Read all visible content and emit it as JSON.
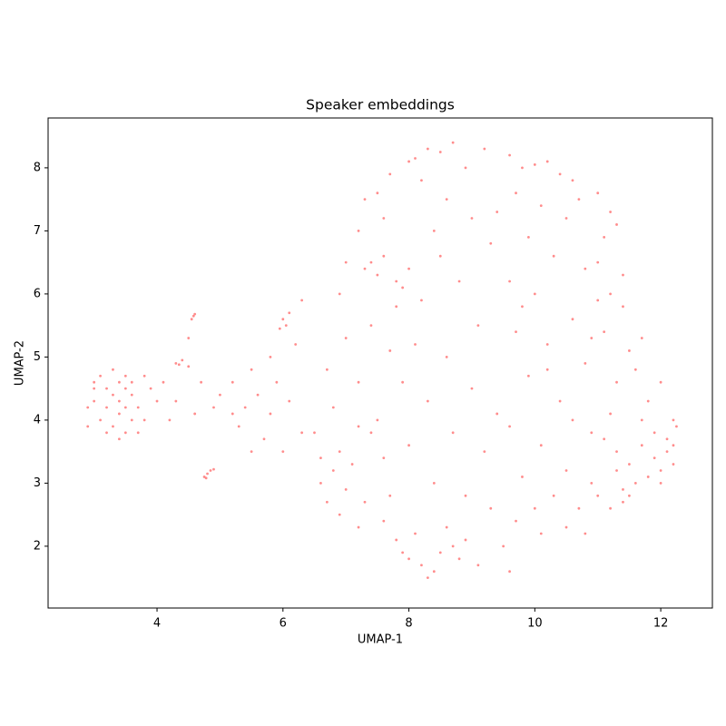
{
  "chart_data": {
    "type": "scatter",
    "title": "Speaker embeddings",
    "xlabel": "UMAP-1",
    "ylabel": "UMAP-2",
    "color": "#ff0000",
    "xlim": [
      2.27,
      12.82
    ],
    "ylim": [
      1.02,
      8.79
    ],
    "xticks": [
      4,
      6,
      8,
      10,
      12
    ],
    "yticks": [
      2,
      3,
      4,
      5,
      6,
      7,
      8
    ],
    "x": [
      3.0,
      3.2,
      3.4,
      3.6,
      3.3,
      3.5,
      3.1,
      3.7,
      3.4,
      3.2,
      3.8,
      3.0,
      3.5,
      3.3,
      3.6,
      2.9,
      3.9,
      3.4,
      3.1,
      3.7,
      3.2,
      3.5,
      3.6,
      3.3,
      2.9,
      4.0,
      3.4,
      3.8,
      3.0,
      3.5,
      4.58,
      4.6,
      4.55,
      4.3,
      4.4,
      4.5,
      4.35,
      4.8,
      4.85,
      4.78,
      4.9,
      4.75,
      4.1,
      4.3,
      4.6,
      4.7,
      4.9,
      4.5,
      5.0,
      4.2,
      5.2,
      5.4,
      5.3,
      5.5,
      5.6,
      5.2,
      5.8,
      5.7,
      5.9,
      5.5,
      6.0,
      6.05,
      6.1,
      5.95,
      6.2,
      6.1,
      6.3,
      6.0,
      6.3,
      5.8,
      6.6,
      6.8,
      6.9,
      7.0,
      6.7,
      7.1,
      6.9,
      7.2,
      7.3,
      6.6,
      6.8,
      6.7,
      7.0,
      6.9,
      7.2,
      7.4,
      7.3,
      7.4,
      7.5,
      7.6,
      7.8,
      7.9,
      7.8,
      7.5,
      7.3,
      7.7,
      7.6,
      7.5,
      7.6,
      7.7,
      7.8,
      7.9,
      7.6,
      7.4,
      7.9,
      7.7,
      7.2,
      6.5,
      7.0,
      7.2,
      8.0,
      8.1,
      8.3,
      8.5,
      8.7,
      8.2,
      8.6,
      8.9,
      9.2,
      8.4,
      8.0,
      8.2,
      8.4,
      8.5,
      8.7,
      8.3,
      8.1,
      8.9,
      8.6,
      8.8,
      8.0,
      8.2,
      8.5,
      8.8,
      9.0,
      9.3,
      9.4,
      8.1,
      8.6,
      9.1,
      8.3,
      8.7,
      9.0,
      9.2,
      8.4,
      8.9,
      9.3,
      9.4,
      9.1,
      8.0,
      9.6,
      9.8,
      10.0,
      10.2,
      10.4,
      10.6,
      9.7,
      10.1,
      10.5,
      9.9,
      10.7,
      10.3,
      9.6,
      10.0,
      10.8,
      9.7,
      10.2,
      10.6,
      9.9,
      10.4,
      10.8,
      9.6,
      10.1,
      10.5,
      10.9,
      9.8,
      10.3,
      10.7,
      9.7,
      10.1,
      10.5,
      10.8,
      9.5,
      10.0,
      9.6,
      10.9,
      10.6,
      10.2,
      9.8,
      10.9,
      11.0,
      11.2,
      11.1,
      11.3,
      11.0,
      11.2,
      11.4,
      11.1,
      11.5,
      11.3,
      11.6,
      11.8,
      12.0,
      12.2,
      11.2,
      11.1,
      11.3,
      11.5,
      11.7,
      11.9,
      12.0,
      12.1,
      12.2,
      11.8,
      11.6,
      11.4,
      11.9,
      12.1,
      12.25,
      11.5,
      11.3,
      11.7,
      12.0,
      11.0,
      11.2,
      11.4,
      11.0,
      11.4,
      11.7,
      12.2
    ],
    "values": [
      4.3,
      4.5,
      4.1,
      4.4,
      3.9,
      4.7,
      4.0,
      4.2,
      4.6,
      4.2,
      4.0,
      4.6,
      3.8,
      4.4,
      4.0,
      4.2,
      4.5,
      4.3,
      4.7,
      3.8,
      3.8,
      4.2,
      4.6,
      4.8,
      3.9,
      4.3,
      3.7,
      4.7,
      4.5,
      4.5,
      5.65,
      5.68,
      5.6,
      4.9,
      4.95,
      4.85,
      4.88,
      3.15,
      3.2,
      3.08,
      3.22,
      3.1,
      4.6,
      4.3,
      4.1,
      4.6,
      4.2,
      5.3,
      4.4,
      4.0,
      4.6,
      4.2,
      3.9,
      4.8,
      4.4,
      4.1,
      5.0,
      3.7,
      4.6,
      3.5,
      5.6,
      5.5,
      5.7,
      5.45,
      5.2,
      4.3,
      3.8,
      3.5,
      5.9,
      4.1,
      3.4,
      3.2,
      3.5,
      2.9,
      2.7,
      3.3,
      2.5,
      2.3,
      2.7,
      3.0,
      4.2,
      4.8,
      5.3,
      6.0,
      4.6,
      5.5,
      6.4,
      6.5,
      6.3,
      6.6,
      6.2,
      6.1,
      5.8,
      7.6,
      7.5,
      7.9,
      7.2,
      4.0,
      3.4,
      2.8,
      2.1,
      1.9,
      2.4,
      3.8,
      4.6,
      5.1,
      3.9,
      3.8,
      6.5,
      7.0,
      8.1,
      8.15,
      8.3,
      8.25,
      8.4,
      7.8,
      7.5,
      8.0,
      8.3,
      7.0,
      1.8,
      1.7,
      1.6,
      1.9,
      2.0,
      1.5,
      2.2,
      2.1,
      2.3,
      1.8,
      6.4,
      5.9,
      6.6,
      6.2,
      7.2,
      6.8,
      7.3,
      5.2,
      5.0,
      5.5,
      4.3,
      3.8,
      4.5,
      3.5,
      3.0,
      2.8,
      2.6,
      4.1,
      1.7,
      3.6,
      8.2,
      8.0,
      8.05,
      8.1,
      7.9,
      7.8,
      7.6,
      7.4,
      7.2,
      6.9,
      7.5,
      6.6,
      6.2,
      6.0,
      6.4,
      5.4,
      5.2,
      5.6,
      4.7,
      4.3,
      4.9,
      3.9,
      3.6,
      3.2,
      3.0,
      3.1,
      2.8,
      2.6,
      2.4,
      2.2,
      2.3,
      2.2,
      2.0,
      2.6,
      1.6,
      3.8,
      4.0,
      4.8,
      5.8,
      5.3,
      7.6,
      7.3,
      6.9,
      7.1,
      6.5,
      6.0,
      5.8,
      5.4,
      5.1,
      4.6,
      4.8,
      4.3,
      4.6,
      4.0,
      4.1,
      3.7,
      3.5,
      3.3,
      3.6,
      3.4,
      3.2,
      3.5,
      3.3,
      3.1,
      3.0,
      2.9,
      3.8,
      3.7,
      3.9,
      2.8,
      3.2,
      4.0,
      3.0,
      2.8,
      2.6,
      2.7,
      5.9,
      6.3,
      5.3,
      3.6
    ]
  }
}
